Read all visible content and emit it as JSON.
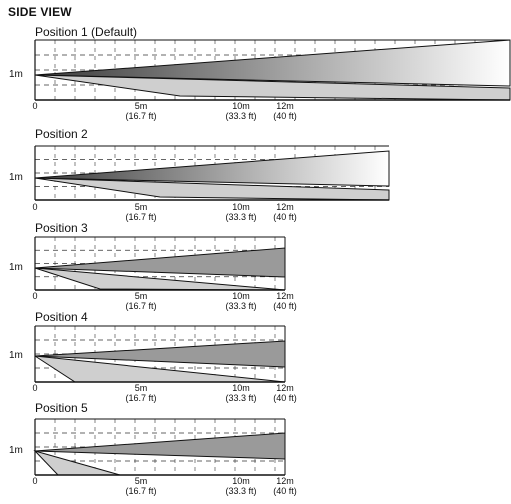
{
  "title": "SIDE VIEW",
  "colors": {
    "line": "#111111",
    "grid": "#333333",
    "far_fill": "#9a9a9a",
    "near_fill": "#cfcfcf",
    "gradient_dark": "#3a3a3a",
    "gradient_light": "#ffffff"
  },
  "panels": [
    {
      "label": "Position 1 (Default)",
      "height_label": "1m",
      "ticks": [
        {
          "lines": [
            "0"
          ]
        },
        {
          "lines": [
            "5m",
            "(16.7 ft)"
          ]
        },
        {
          "lines": [
            "10m",
            "(33.3 ft)"
          ]
        },
        {
          "lines": [
            "12m",
            "(40 ft)"
          ]
        }
      ]
    },
    {
      "label": "Position 2",
      "height_label": "1m",
      "ticks": [
        {
          "lines": [
            "0"
          ]
        },
        {
          "lines": [
            "5m",
            "(16.7 ft)"
          ]
        },
        {
          "lines": [
            "10m",
            "(33.3 ft)"
          ]
        },
        {
          "lines": [
            "12m",
            "(40 ft)"
          ]
        }
      ]
    },
    {
      "label": "Position 3",
      "height_label": "1m",
      "ticks": [
        {
          "lines": [
            "0"
          ]
        },
        {
          "lines": [
            "5m",
            "(16.7 ft)"
          ]
        },
        {
          "lines": [
            "10m",
            "(33.3 ft)"
          ]
        },
        {
          "lines": [
            "12m",
            "(40 ft)"
          ]
        }
      ]
    },
    {
      "label": "Position 4",
      "height_label": "1m",
      "ticks": [
        {
          "lines": [
            "0"
          ]
        },
        {
          "lines": [
            "5m",
            "(16.7 ft)"
          ]
        },
        {
          "lines": [
            "10m",
            "(33.3 ft)"
          ]
        },
        {
          "lines": [
            "12m",
            "(40 ft)"
          ]
        }
      ]
    },
    {
      "label": "Position 5",
      "height_label": "1m",
      "ticks": [
        {
          "lines": [
            "0"
          ]
        },
        {
          "lines": [
            "5m",
            "(16.7 ft)"
          ]
        },
        {
          "lines": [
            "10m",
            "(33.3 ft)"
          ]
        },
        {
          "lines": [
            "12m",
            "(40 ft)"
          ]
        }
      ]
    }
  ]
}
